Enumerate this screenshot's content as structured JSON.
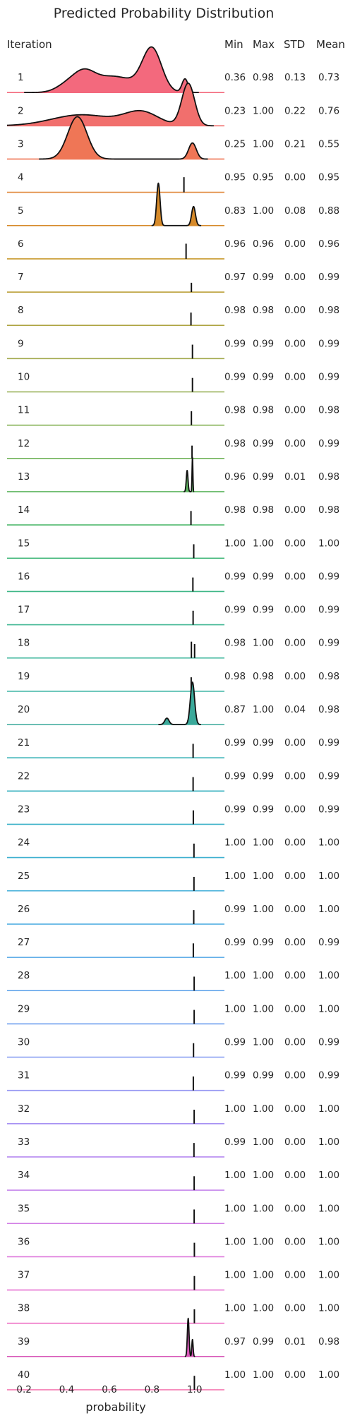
{
  "chart_data": {
    "type": "ridgeline",
    "title": "Predicted Probability Distribution",
    "xlabel": "probability",
    "ylabel": "",
    "xlim": [
      0.12,
      1.14
    ],
    "x_ticks": [
      "0.2",
      "0.4",
      "0.6",
      "0.8",
      "1.0"
    ],
    "x_tick_values": [
      0.2,
      0.4,
      0.6,
      0.8,
      1.0
    ],
    "grid": false,
    "headers": {
      "iteration": "Iteration",
      "min": "Min",
      "max": "Max",
      "std": "STD",
      "mean": "Mean"
    },
    "rows": [
      {
        "iteration": "1",
        "min": "0.36",
        "max": "0.98",
        "std": "0.13",
        "mean": "0.73",
        "color": "#f3697d",
        "peaks": [
          [
            0.4,
            0.16,
            0.05
          ],
          [
            0.48,
            0.37,
            0.05
          ],
          [
            0.62,
            0.38,
            0.1
          ],
          [
            0.8,
            1.0,
            0.045
          ],
          [
            0.955,
            0.32,
            0.014
          ]
        ]
      },
      {
        "iteration": "2",
        "min": "0.23",
        "max": "1.00",
        "std": "0.22",
        "mean": "0.76",
        "color": "#f16f6d",
        "peaks": [
          [
            0.47,
            0.26,
            0.14
          ],
          [
            0.75,
            0.32,
            0.08
          ],
          [
            0.97,
            1.0,
            0.03
          ]
        ]
      },
      {
        "iteration": "3",
        "min": "0.25",
        "max": "1.00",
        "std": "0.21",
        "mean": "0.55",
        "color": "#ef7656",
        "peaks": [
          [
            0.45,
            1.0,
            0.045
          ],
          [
            0.99,
            0.38,
            0.018
          ]
        ]
      },
      {
        "iteration": "4",
        "min": "0.95",
        "max": "0.95",
        "std": "0.00",
        "mean": "0.95",
        "color": "#e0893c",
        "peaks": [
          [
            0.95,
            0.65,
            0.001
          ]
        ]
      },
      {
        "iteration": "5",
        "min": "0.83",
        "max": "1.00",
        "std": "0.08",
        "mean": "0.88",
        "color": "#d68a2a",
        "peaks": [
          [
            0.83,
            1.0,
            0.008
          ],
          [
            0.995,
            0.45,
            0.009
          ]
        ]
      },
      {
        "iteration": "6",
        "min": "0.96",
        "max": "0.96",
        "std": "0.00",
        "mean": "0.96",
        "color": "#c89a2d",
        "peaks": [
          [
            0.96,
            0.65,
            0.001
          ]
        ]
      },
      {
        "iteration": "7",
        "min": "0.97",
        "max": "0.99",
        "std": "0.00",
        "mean": "0.99",
        "color": "#bba13a",
        "peaks": [
          [
            0.985,
            0.4,
            0.002
          ]
        ]
      },
      {
        "iteration": "8",
        "min": "0.98",
        "max": "0.98",
        "std": "0.00",
        "mean": "0.98",
        "color": "#afa543",
        "peaks": [
          [
            0.983,
            0.55,
            0.001
          ]
        ]
      },
      {
        "iteration": "9",
        "min": "0.99",
        "max": "0.99",
        "std": "0.00",
        "mean": "0.99",
        "color": "#a1a94b",
        "peaks": [
          [
            0.99,
            0.6,
            0.001
          ]
        ]
      },
      {
        "iteration": "10",
        "min": "0.99",
        "max": "0.99",
        "std": "0.00",
        "mean": "0.99",
        "color": "#93ad51",
        "peaks": [
          [
            0.99,
            0.6,
            0.001
          ]
        ]
      },
      {
        "iteration": "11",
        "min": "0.98",
        "max": "0.98",
        "std": "0.00",
        "mean": "0.98",
        "color": "#84b156",
        "peaks": [
          [
            0.985,
            0.6,
            0.001
          ]
        ]
      },
      {
        "iteration": "12",
        "min": "0.98",
        "max": "0.99",
        "std": "0.00",
        "mean": "0.99",
        "color": "#72b45b",
        "peaks": [
          [
            0.988,
            0.55,
            0.0015
          ]
        ]
      },
      {
        "iteration": "13",
        "min": "0.96",
        "max": "0.99",
        "std": "0.01",
        "mean": "0.98",
        "color": "#5fb661",
        "peaks": [
          [
            0.965,
            0.5,
            0.004
          ],
          [
            0.99,
            0.8,
            0.002
          ]
        ]
      },
      {
        "iteration": "14",
        "min": "0.98",
        "max": "0.98",
        "std": "0.00",
        "mean": "0.98",
        "color": "#4bb76a",
        "peaks": [
          [
            0.983,
            0.6,
            0.001
          ]
        ]
      },
      {
        "iteration": "15",
        "min": "1.00",
        "max": "1.00",
        "std": "0.00",
        "mean": "1.00",
        "color": "#41b77a",
        "peaks": [
          [
            0.996,
            0.6,
            0.001
          ]
        ]
      },
      {
        "iteration": "16",
        "min": "0.99",
        "max": "0.99",
        "std": "0.00",
        "mean": "0.99",
        "color": "#3fb787",
        "peaks": [
          [
            0.992,
            0.6,
            0.001
          ]
        ]
      },
      {
        "iteration": "17",
        "min": "0.99",
        "max": "0.99",
        "std": "0.00",
        "mean": "0.99",
        "color": "#3eb693",
        "peaks": [
          [
            0.993,
            0.6,
            0.001
          ]
        ]
      },
      {
        "iteration": "18",
        "min": "0.98",
        "max": "1.00",
        "std": "0.00",
        "mean": "0.99",
        "color": "#3db59c",
        "peaks": [
          [
            0.985,
            0.7,
            0.0015
          ],
          [
            1.0,
            0.6,
            0.0015
          ]
        ]
      },
      {
        "iteration": "19",
        "min": "0.98",
        "max": "0.98",
        "std": "0.00",
        "mean": "0.98",
        "color": "#3cb4a5",
        "peaks": [
          [
            0.984,
            0.6,
            0.001
          ]
        ]
      },
      {
        "iteration": "20",
        "min": "0.87",
        "max": "1.00",
        "std": "0.04",
        "mean": "0.98",
        "color": "#3aa99a",
        "peaks": [
          [
            0.87,
            0.15,
            0.01
          ],
          [
            0.99,
            1.0,
            0.01
          ]
        ]
      },
      {
        "iteration": "21",
        "min": "0.99",
        "max": "0.99",
        "std": "0.00",
        "mean": "0.99",
        "color": "#3ab3b8",
        "peaks": [
          [
            0.993,
            0.6,
            0.001
          ]
        ]
      },
      {
        "iteration": "22",
        "min": "0.99",
        "max": "0.99",
        "std": "0.00",
        "mean": "0.99",
        "color": "#3bb2c0",
        "peaks": [
          [
            0.993,
            0.6,
            0.001
          ]
        ]
      },
      {
        "iteration": "23",
        "min": "0.99",
        "max": "0.99",
        "std": "0.00",
        "mean": "0.99",
        "color": "#3cb1c8",
        "peaks": [
          [
            0.994,
            0.6,
            0.001
          ]
        ]
      },
      {
        "iteration": "24",
        "min": "1.00",
        "max": "1.00",
        "std": "0.00",
        "mean": "1.00",
        "color": "#3eb0d0",
        "peaks": [
          [
            0.997,
            0.6,
            0.001
          ]
        ]
      },
      {
        "iteration": "25",
        "min": "1.00",
        "max": "1.00",
        "std": "0.00",
        "mean": "1.00",
        "color": "#41aed8",
        "peaks": [
          [
            0.997,
            0.6,
            0.001
          ]
        ]
      },
      {
        "iteration": "26",
        "min": "0.99",
        "max": "1.00",
        "std": "0.00",
        "mean": "1.00",
        "color": "#4aabe0",
        "peaks": [
          [
            0.996,
            0.6,
            0.001
          ]
        ]
      },
      {
        "iteration": "27",
        "min": "0.99",
        "max": "0.99",
        "std": "0.00",
        "mean": "0.99",
        "color": "#55a8e6",
        "peaks": [
          [
            0.994,
            0.6,
            0.001
          ]
        ]
      },
      {
        "iteration": "28",
        "min": "1.00",
        "max": "1.00",
        "std": "0.00",
        "mean": "1.00",
        "color": "#62a4eb",
        "peaks": [
          [
            0.998,
            0.6,
            0.001
          ]
        ]
      },
      {
        "iteration": "29",
        "min": "1.00",
        "max": "1.00",
        "std": "0.00",
        "mean": "1.00",
        "color": "#72a0ef",
        "peaks": [
          [
            0.998,
            0.6,
            0.001
          ]
        ]
      },
      {
        "iteration": "30",
        "min": "0.99",
        "max": "1.00",
        "std": "0.00",
        "mean": "0.99",
        "color": "#849bf2",
        "peaks": [
          [
            0.995,
            0.6,
            0.001
          ]
        ]
      },
      {
        "iteration": "31",
        "min": "0.99",
        "max": "0.99",
        "std": "0.00",
        "mean": "0.99",
        "color": "#9596f3",
        "peaks": [
          [
            0.994,
            0.6,
            0.001
          ]
        ]
      },
      {
        "iteration": "32",
        "min": "1.00",
        "max": "1.00",
        "std": "0.00",
        "mean": "1.00",
        "color": "#a690f3",
        "peaks": [
          [
            0.998,
            0.6,
            0.001
          ]
        ]
      },
      {
        "iteration": "33",
        "min": "0.99",
        "max": "1.00",
        "std": "0.00",
        "mean": "1.00",
        "color": "#b68af1",
        "peaks": [
          [
            0.997,
            0.6,
            0.001
          ]
        ]
      },
      {
        "iteration": "34",
        "min": "1.00",
        "max": "1.00",
        "std": "0.00",
        "mean": "1.00",
        "color": "#c584ec",
        "peaks": [
          [
            0.998,
            0.6,
            0.001
          ]
        ]
      },
      {
        "iteration": "35",
        "min": "1.00",
        "max": "1.00",
        "std": "0.00",
        "mean": "1.00",
        "color": "#d27ee5",
        "peaks": [
          [
            0.998,
            0.6,
            0.001
          ]
        ]
      },
      {
        "iteration": "36",
        "min": "1.00",
        "max": "1.00",
        "std": "0.00",
        "mean": "1.00",
        "color": "#de78dc",
        "peaks": [
          [
            0.999,
            0.6,
            0.001
          ]
        ]
      },
      {
        "iteration": "37",
        "min": "1.00",
        "max": "1.00",
        "std": "0.00",
        "mean": "1.00",
        "color": "#e773d1",
        "peaks": [
          [
            0.999,
            0.6,
            0.001
          ]
        ]
      },
      {
        "iteration": "38",
        "min": "1.00",
        "max": "1.00",
        "std": "0.00",
        "mean": "1.00",
        "color": "#ee6fc4",
        "peaks": [
          [
            0.999,
            0.6,
            0.001
          ]
        ]
      },
      {
        "iteration": "39",
        "min": "0.97",
        "max": "0.99",
        "std": "0.01",
        "mean": "0.98",
        "color": "#d858b8",
        "peaks": [
          [
            0.97,
            0.9,
            0.004
          ],
          [
            0.99,
            0.4,
            0.003
          ]
        ]
      },
      {
        "iteration": "40",
        "min": "1.00",
        "max": "1.00",
        "std": "0.00",
        "mean": "1.00",
        "color": "#f46aa9",
        "peaks": [
          [
            0.999,
            0.6,
            0.001
          ]
        ]
      }
    ]
  }
}
